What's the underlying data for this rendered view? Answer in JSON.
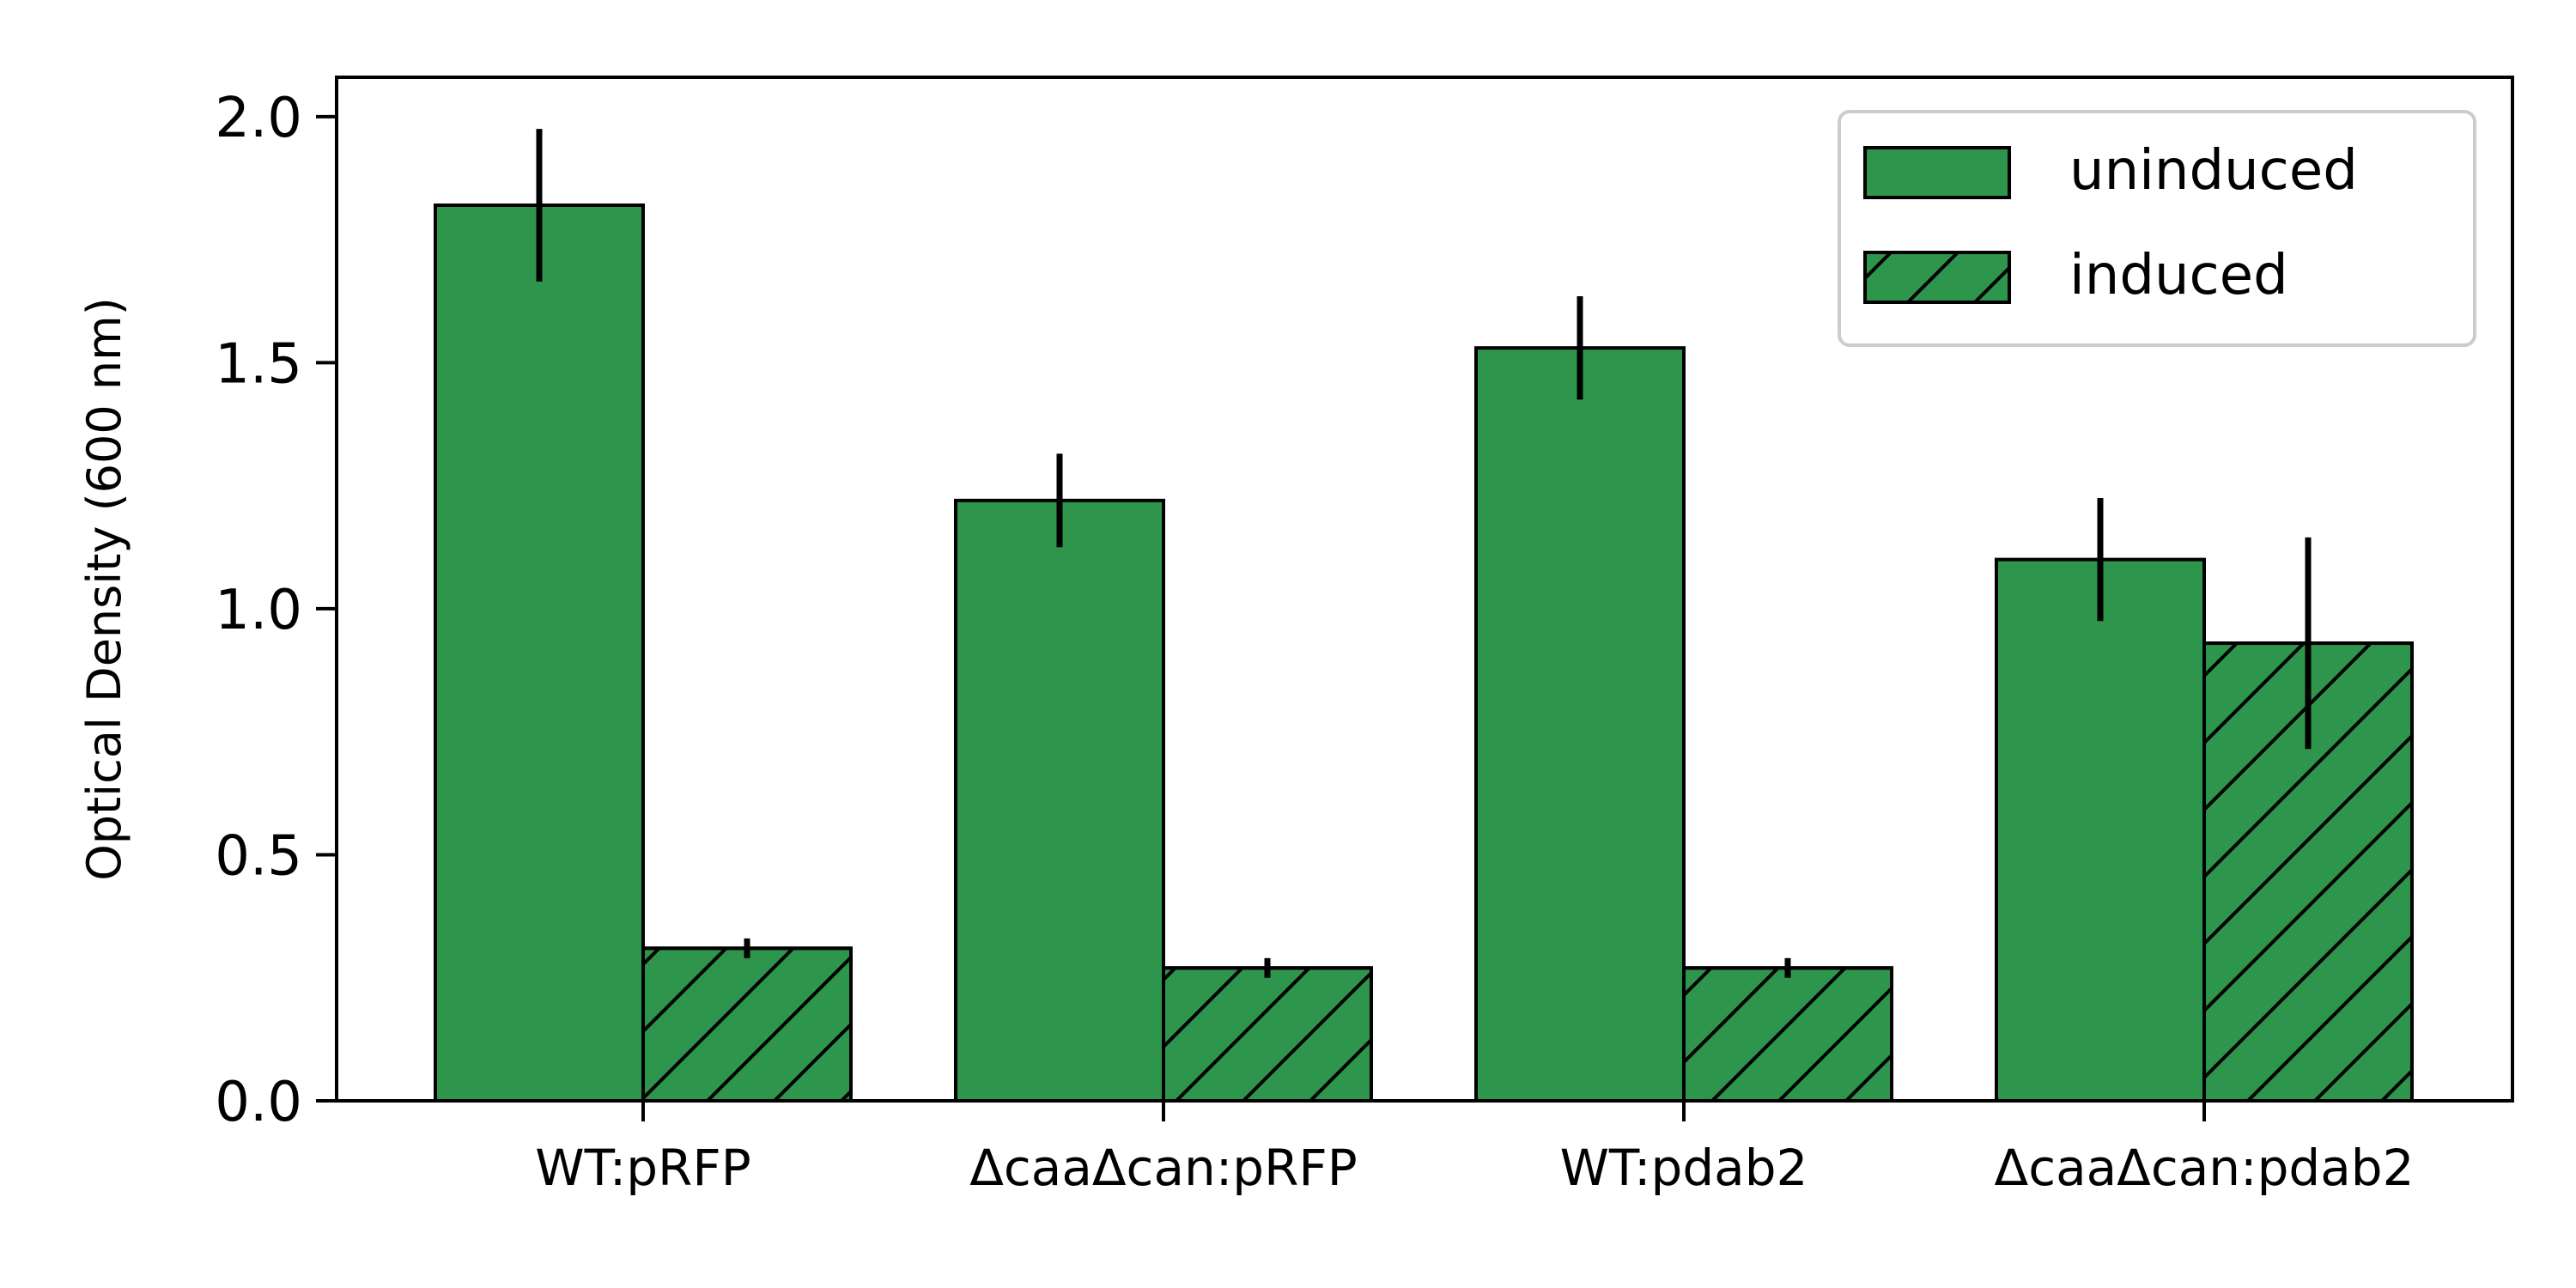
{
  "chart_data": {
    "type": "bar",
    "title": "",
    "xlabel": "",
    "ylabel": "Optical Density (600 nm)",
    "categories": [
      "WT:pRFP",
      "ΔcaaΔcan:pRFP",
      "WT:pdab2",
      "ΔcaaΔcan:pdab2"
    ],
    "series": [
      {
        "name": "uninduced",
        "values": [
          1.82,
          1.22,
          1.53,
          1.1
        ],
        "errors": [
          0.155,
          0.095,
          0.105,
          0.125
        ],
        "hatch": false
      },
      {
        "name": "induced",
        "values": [
          0.31,
          0.27,
          0.27,
          0.93
        ],
        "errors": [
          0.02,
          0.02,
          0.02,
          0.215
        ],
        "hatch": true
      }
    ],
    "ylim": [
      0,
      2.08
    ],
    "yticks": [
      "0.0",
      "0.5",
      "1.0",
      "1.5",
      "2.0"
    ],
    "legend_position": "top-right",
    "grid": false,
    "colors": {
      "bar": "#2e954c",
      "edge": "#000000"
    }
  }
}
